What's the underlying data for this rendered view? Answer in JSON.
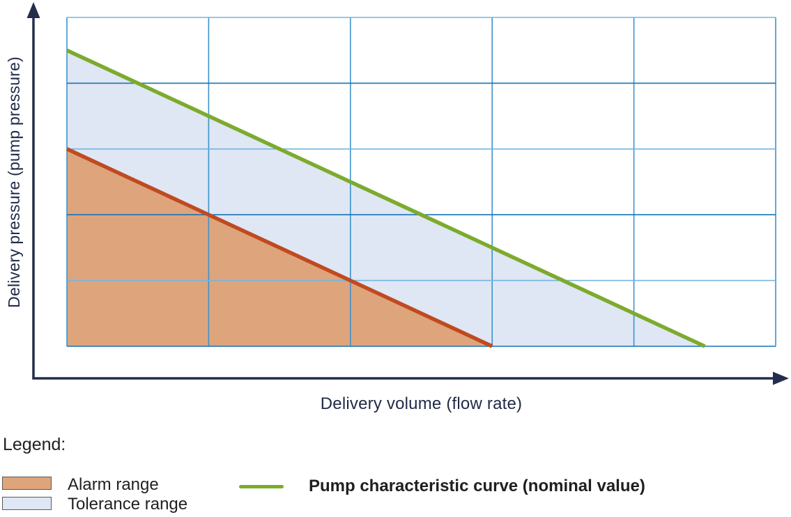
{
  "chart_data": {
    "type": "area",
    "title": "",
    "xlabel": "Delivery volume (flow rate)",
    "ylabel": "Delivery pressure (pump pressure)",
    "x_range": [
      0,
      5
    ],
    "y_range": [
      0,
      5
    ],
    "grid": true,
    "tick_labels": "none (qualitative axes, 5x5 gridline cells)",
    "legend_position": "bottom-left",
    "series": [
      {
        "name": "Tolerance range",
        "type": "area",
        "fill": "#DFE6F4",
        "points": [
          [
            0,
            4.5
          ],
          [
            4.5,
            0
          ],
          [
            0,
            0
          ]
        ]
      },
      {
        "name": "Alarm range",
        "type": "area",
        "fill": "#DEA47C",
        "boundary_color": "#C04A20",
        "boundary": [
          [
            0,
            3
          ],
          [
            3,
            0
          ]
        ],
        "points": [
          [
            0,
            3
          ],
          [
            3,
            0
          ],
          [
            0,
            0
          ]
        ]
      },
      {
        "name": "Pump characteristic curve (nominal value)",
        "type": "line",
        "color": "#7CAB2D",
        "points": [
          [
            0,
            4.5
          ],
          [
            4.5,
            0
          ]
        ]
      }
    ]
  },
  "axes": {
    "x_label": "Delivery volume (flow rate)",
    "y_label": "Delivery pressure (pump pressure)",
    "axis_color": "#242E4C",
    "label_color": "#1F2A47"
  },
  "grid_colors": {
    "vertical": "#3D92CC",
    "horizontal_light": "#74B5E0",
    "horizontal_dark": "#1473B8"
  },
  "legend": {
    "title": "Legend:",
    "items": [
      {
        "label": "Alarm range",
        "kind": "area",
        "swatch_fill": "#DEA47C",
        "swatch_border": "#595959"
      },
      {
        "label": "Tolerance range",
        "kind": "area",
        "swatch_fill": "#DFE6F4",
        "swatch_border": "#595959"
      },
      {
        "label": "Pump characteristic curve (nominal value)",
        "kind": "line",
        "line_color": "#7CAB2D"
      }
    ]
  }
}
